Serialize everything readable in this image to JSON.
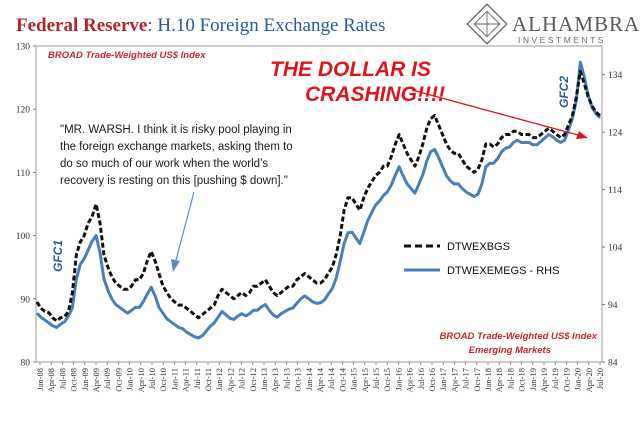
{
  "chart_data": {
    "type": "line",
    "title": "Federal Reserve",
    "title_rest": ": H.10 Foreign Exchange Rates",
    "subtitle": "BROAD Trade-Weighted US$ Index",
    "brand": {
      "name": "ALHAMBRA",
      "sub": "INVESTMENTS"
    },
    "headline": [
      "THE DOLLAR IS",
      "CRASHING!!!!"
    ],
    "quote": [
      "\"MR. WARSH. I think it is risky pool playing in",
      "the foreign exchange markets, asking them to",
      "do so much of our work when the world’s",
      "recovery is resting on this [pushing $ down].\""
    ],
    "annotations": {
      "gfc1": "GFC1",
      "gfc2": "GFC2"
    },
    "footnote": [
      "BROAD Trade-Weighted US$ Index",
      "Emerging Markets"
    ],
    "y_left": {
      "min": 80,
      "max": 130,
      "ticks": [
        "80",
        "90",
        "100",
        "110",
        "120",
        "130"
      ]
    },
    "y_right": {
      "min": 84,
      "max": 139,
      "ticks": [
        "84",
        "94",
        "104",
        "114",
        "124",
        "134"
      ]
    },
    "x_ticks": [
      "Jan-08",
      "Apr-08",
      "Jul-08",
      "Oct-08",
      "Jan-09",
      "Apr-09",
      "Jul-09",
      "Oct-09",
      "Jan-10",
      "Apr-10",
      "Jul-10",
      "Oct-10",
      "Jan-11",
      "Apr-11",
      "Jul-11",
      "Oct-11",
      "Jan-12",
      "Apr-12",
      "Jul-12",
      "Oct-12",
      "Jan-13",
      "Apr-13",
      "Jul-13",
      "Oct-13",
      "Jan-14",
      "Apr-14",
      "Jul-14",
      "Oct-14",
      "Jan-15",
      "Apr-15",
      "Jul-15",
      "Oct-15",
      "Jan-16",
      "Apr-16",
      "Jul-16",
      "Oct-16",
      "Jan-17",
      "Apr-17",
      "Jul-17",
      "Oct-17",
      "Jan-18",
      "Apr-18",
      "Jul-18",
      "Oct-18",
      "Jan-19",
      "Apr-19",
      "Jul-19",
      "Oct-19",
      "Jan-20",
      "Apr-20",
      "Jul-20"
    ],
    "series": [
      {
        "name": "DTWEXBGS",
        "axis": "left",
        "color": "#111111",
        "style": "dashed",
        "values": [
          89.5,
          88.5,
          88,
          87.8,
          87,
          86.5,
          87,
          87.2,
          88,
          91,
          97,
          99,
          100,
          102,
          103,
          105,
          102,
          97,
          95,
          93.5,
          92.5,
          92,
          91.5,
          91.5,
          92,
          93,
          93,
          94,
          96,
          97.5,
          96,
          94,
          92,
          91,
          90,
          89.5,
          89,
          89,
          88.5,
          88,
          87.5,
          87,
          87.5,
          88,
          88.5,
          89,
          90.5,
          91.5,
          91,
          90.5,
          90,
          90.5,
          91,
          90.5,
          91,
          92,
          92,
          92.5,
          93,
          92,
          91,
          90.5,
          91,
          91.5,
          92,
          92,
          93,
          93.5,
          94,
          93.5,
          93,
          92.5,
          92.5,
          93,
          94,
          95,
          97,
          100,
          104,
          106,
          106,
          105,
          104,
          106,
          107.5,
          108.5,
          109.5,
          110,
          111,
          111,
          112.5,
          114.5,
          116,
          114.5,
          113,
          112,
          111,
          112.5,
          114.5,
          117,
          118.5,
          119,
          117.5,
          116,
          114.5,
          113.5,
          113,
          113,
          112,
          111,
          110.5,
          110,
          110.5,
          112,
          114.5,
          114.5,
          114,
          114.5,
          115.5,
          116,
          116,
          116.5,
          116.5,
          116,
          116,
          116,
          115.5,
          115.5,
          116,
          116.5,
          117,
          116.5,
          116,
          115.5,
          116,
          117.5,
          119,
          122,
          126,
          124,
          122,
          120.5,
          119.5,
          119
        ]
      },
      {
        "name": "DTWEXEMEGS - RHS",
        "axis": "right",
        "color": "#4a7fb5",
        "style": "solid",
        "values": [
          92.5,
          91.8,
          91.3,
          90.8,
          90.3,
          90,
          90.6,
          91,
          92,
          93.5,
          98.5,
          101,
          102,
          103.5,
          105,
          106,
          103,
          98.5,
          96.5,
          95,
          94,
          93.5,
          93,
          92.5,
          93,
          93.5,
          93.5,
          94.5,
          95.8,
          97,
          95.5,
          93.5,
          92.5,
          91.5,
          91,
          90.5,
          90,
          89.8,
          89.2,
          88.8,
          88.4,
          88.2,
          88.6,
          89.4,
          90.2,
          90.8,
          91.8,
          92.8,
          92.2,
          91.6,
          91.4,
          92,
          92.4,
          92,
          92.4,
          93,
          93,
          93.6,
          94,
          93,
          92.2,
          91.8,
          92.4,
          92.8,
          93.2,
          93.4,
          94.2,
          95,
          95.5,
          95,
          94.5,
          94.2,
          94.3,
          94.8,
          95.8,
          96.8,
          98.6,
          101.5,
          104.6,
          106.5,
          106.6,
          105.6,
          104.6,
          106.6,
          108.6,
          110,
          111.3,
          112,
          113,
          113.6,
          114.8,
          116.5,
          118,
          116.4,
          115,
          114.2,
          113.4,
          115,
          116.6,
          119,
          120.6,
          121,
          119.6,
          118,
          116.4,
          115.5,
          115,
          115,
          114.2,
          113.6,
          113.2,
          112.8,
          113.2,
          115,
          118,
          118.6,
          118.6,
          119.4,
          120.6,
          121.2,
          121.4,
          122.2,
          122.6,
          122.2,
          122.2,
          122.2,
          121.8,
          121.8,
          122.4,
          123,
          123.6,
          123.2,
          122.6,
          122.2,
          122.6,
          124.4,
          126.4,
          129.6,
          136.2,
          133.6,
          130.4,
          128.3,
          127.2,
          126.5
        ]
      }
    ],
    "legend_placement": "center-right"
  }
}
